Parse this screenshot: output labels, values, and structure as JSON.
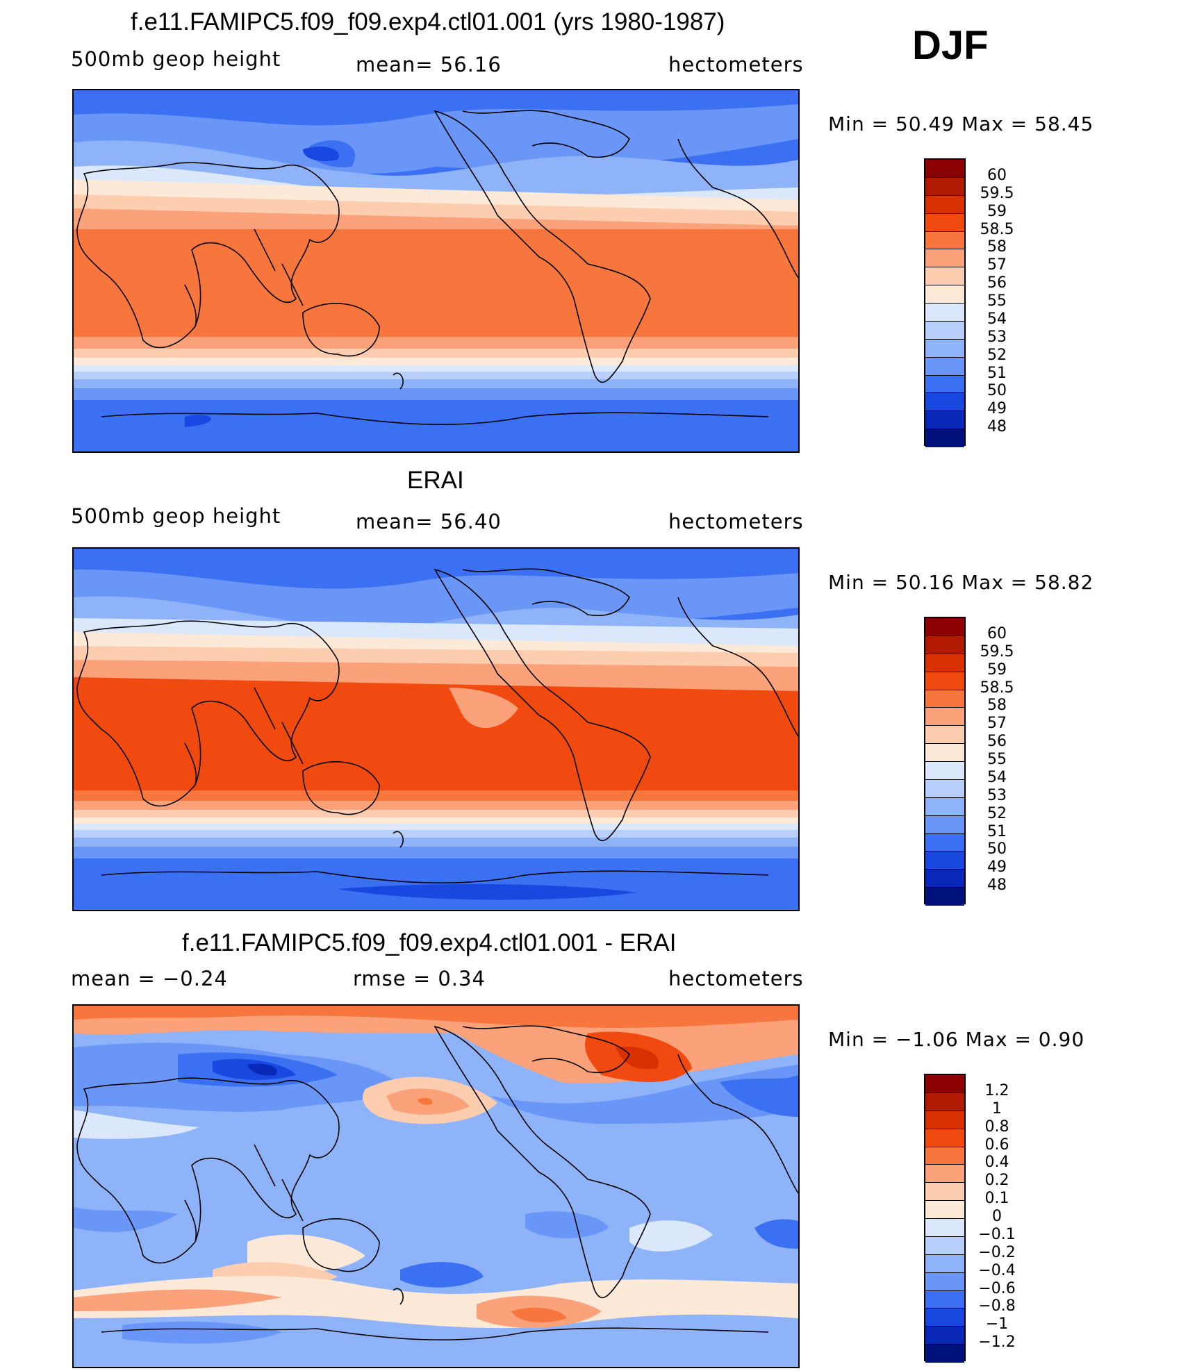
{
  "season": "DJF",
  "panels": [
    {
      "title": "f.e11.FAMIPC5.f09_f09.exp4.ctl01.001 (yrs 1980-1987)",
      "left_text": "500mb  geop  height",
      "center_text": "mean=   56.16",
      "right_text": "hectometers",
      "minmax": "Min  =    50.49  Max  =    58.45",
      "colorbar_labels": [
        "60",
        "59.5",
        "59",
        "58.5",
        "58",
        "57",
        "56",
        "55",
        "54",
        "53",
        "52",
        "51",
        "50",
        "49",
        "48"
      ]
    },
    {
      "title": "ERAI",
      "left_text": "500mb  geop  height",
      "center_text": "mean=   56.40",
      "right_text": "hectometers",
      "minmax": "Min  =    50.16  Max  =    58.82",
      "colorbar_labels": [
        "60",
        "59.5",
        "59",
        "58.5",
        "58",
        "57",
        "56",
        "55",
        "54",
        "53",
        "52",
        "51",
        "50",
        "49",
        "48"
      ]
    },
    {
      "title": "f.e11.FAMIPC5.f09_f09.exp4.ctl01.001 - ERAI",
      "left_text": "mean  =    −0.24",
      "center_text": "rmse  =     0.34",
      "right_text": "hectometers",
      "minmax": "Min  =    −1.06  Max  =      0.90",
      "colorbar_labels": [
        "1.2",
        "1",
        "0.8",
        "0.6",
        "0.4",
        "0.2",
        "0.1",
        "0",
        "−0.1",
        "−0.2",
        "−0.4",
        "−0.6",
        "−0.8",
        "−1",
        "−1.2"
      ]
    }
  ],
  "colors": {
    "absolute_scale": [
      "#8b0000",
      "#b01a00",
      "#d83000",
      "#f04a10",
      "#f7763d",
      "#fba27a",
      "#fdcdb0",
      "#fde9d8",
      "#dbe8fb",
      "#b8cffb",
      "#8fb3f9",
      "#6a97f7",
      "#3c70f2",
      "#1848e0",
      "#0a28b8",
      "#00107a"
    ],
    "difference_scale": [
      "#8b0000",
      "#b01a00",
      "#d83000",
      "#f04a10",
      "#f7763d",
      "#fba27a",
      "#fdcdb0",
      "#fde9d8",
      "#dbe8fb",
      "#b8cffb",
      "#8fb3f9",
      "#6a97f7",
      "#3c70f2",
      "#1848e0",
      "#0a28b8",
      "#00107a"
    ]
  }
}
